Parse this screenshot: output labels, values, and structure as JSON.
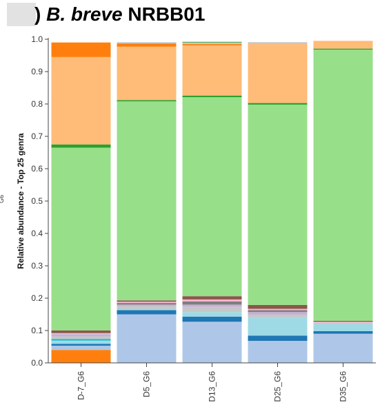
{
  "title": {
    "prefix": ")",
    "species": "B. breve",
    "strain": "NRBB01"
  },
  "side_label": "G6",
  "chart_data": {
    "type": "bar",
    "stacked": true,
    "ylabel": "Relative abundance - Top 25 genra",
    "xlabel": "",
    "ylim": [
      0,
      1.0
    ],
    "yticks": [
      "0.0",
      "0.1",
      "0.2",
      "0.3",
      "0.4",
      "0.5",
      "0.6",
      "0.7",
      "0.8",
      "0.9",
      "1.0"
    ],
    "grid": false,
    "categories": [
      "D-7_G6",
      "D5_G6",
      "D13_G6",
      "D25_G6",
      "D35_G6"
    ],
    "series": [
      {
        "color": "#ff7f0e",
        "values": [
          0.04,
          0.0,
          0.0,
          0.0,
          0.0
        ]
      },
      {
        "color": "#aec7e8",
        "values": [
          0.013,
          0.15,
          0.127,
          0.068,
          0.09
        ]
      },
      {
        "color": "#1f77b4",
        "values": [
          0.006,
          0.013,
          0.016,
          0.016,
          0.008
        ]
      },
      {
        "color": "#9edae5",
        "values": [
          0.01,
          0.004,
          0.014,
          0.056,
          0.022
        ]
      },
      {
        "color": "#17becf",
        "values": [
          0.005,
          0.0,
          0.0,
          0.0,
          0.0
        ]
      },
      {
        "color": "#c7c7c7",
        "values": [
          0.008,
          0.008,
          0.016,
          0.009,
          0.004
        ]
      },
      {
        "color": "#c5b0d5",
        "values": [
          0.007,
          0.005,
          0.007,
          0.008,
          0.0
        ]
      },
      {
        "color": "#7f7f7f",
        "values": [
          0.0,
          0.005,
          0.01,
          0.006,
          0.0
        ]
      },
      {
        "color": "#f7b6d2",
        "values": [
          0.003,
          0.004,
          0.006,
          0.004,
          0.003
        ]
      },
      {
        "color": "#8c564b",
        "values": [
          0.008,
          0.004,
          0.01,
          0.012,
          0.003
        ]
      },
      {
        "color": "#98df8a",
        "values": [
          0.565,
          0.615,
          0.615,
          0.619,
          0.838
        ]
      },
      {
        "color": "#2ca02c",
        "values": [
          0.01,
          0.004,
          0.005,
          0.005,
          0.003
        ]
      },
      {
        "color": "#ffbb78",
        "values": [
          0.27,
          0.165,
          0.155,
          0.182,
          0.024
        ]
      },
      {
        "color": "#ff7f0e",
        "values": [
          0.045,
          0.01,
          0.004,
          0.0,
          0.0
        ]
      },
      {
        "color": "#c7c7c7",
        "values": [
          0.0,
          0.004,
          0.005,
          0.006,
          0.0
        ]
      },
      {
        "color": "#2ca02c",
        "values": [
          0.0,
          0.0,
          0.002,
          0.0,
          0.0
        ]
      }
    ]
  }
}
